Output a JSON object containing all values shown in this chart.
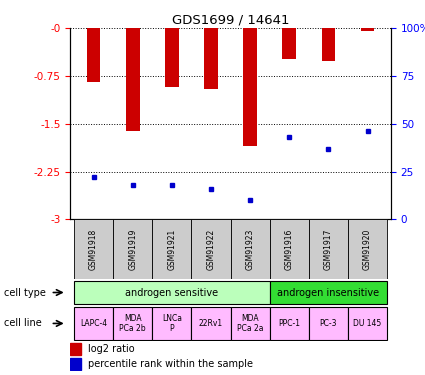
{
  "title": "GDS1699 / 14641",
  "samples": [
    "GSM91918",
    "GSM91919",
    "GSM91921",
    "GSM91922",
    "GSM91923",
    "GSM91916",
    "GSM91917",
    "GSM91920"
  ],
  "log2_values": [
    -0.85,
    -1.62,
    -0.92,
    -0.95,
    -1.85,
    -0.48,
    -0.52,
    -0.05
  ],
  "percentile_values": [
    22,
    18,
    18,
    16,
    10,
    43,
    37,
    46
  ],
  "bar_color": "#cc0000",
  "dot_color": "#0000cc",
  "ylim_left": [
    -3,
    0
  ],
  "ylim_right": [
    0,
    100
  ],
  "yticks_left": [
    0,
    -0.75,
    -1.5,
    -2.25,
    -3
  ],
  "yticks_right": [
    0,
    25,
    50,
    75,
    100
  ],
  "ytick_labels_left": [
    "-0",
    "-0.75",
    "-1.5",
    "-2.25",
    "-3"
  ],
  "ytick_labels_right": [
    "0",
    "25",
    "50",
    "75",
    "100%"
  ],
  "cell_types": [
    {
      "label": "androgen sensitive",
      "span": [
        0,
        5
      ],
      "color": "#bbffbb"
    },
    {
      "label": "androgen insensitive",
      "span": [
        5,
        8
      ],
      "color": "#33dd33"
    }
  ],
  "cell_lines": [
    {
      "label": "LAPC-4",
      "span": [
        0,
        1
      ],
      "color": "#ffbbff"
    },
    {
      "label": "MDA\nPCa 2b",
      "span": [
        1,
        2
      ],
      "color": "#ffbbff"
    },
    {
      "label": "LNCa\nP",
      "span": [
        2,
        3
      ],
      "color": "#ffbbff"
    },
    {
      "label": "22Rv1",
      "span": [
        3,
        4
      ],
      "color": "#ffbbff"
    },
    {
      "label": "MDA\nPCa 2a",
      "span": [
        4,
        5
      ],
      "color": "#ffbbff"
    },
    {
      "label": "PPC-1",
      "span": [
        5,
        6
      ],
      "color": "#ffbbff"
    },
    {
      "label": "PC-3",
      "span": [
        6,
        7
      ],
      "color": "#ffbbff"
    },
    {
      "label": "DU 145",
      "span": [
        7,
        8
      ],
      "color": "#ffbbff"
    }
  ],
  "legend_bar_label": "log2 ratio",
  "legend_dot_label": "percentile rank within the sample",
  "xlabel_cell_type": "cell type",
  "xlabel_cell_line": "cell line",
  "bar_width": 0.35,
  "sample_box_color": "#cccccc",
  "background_color": "#ffffff"
}
